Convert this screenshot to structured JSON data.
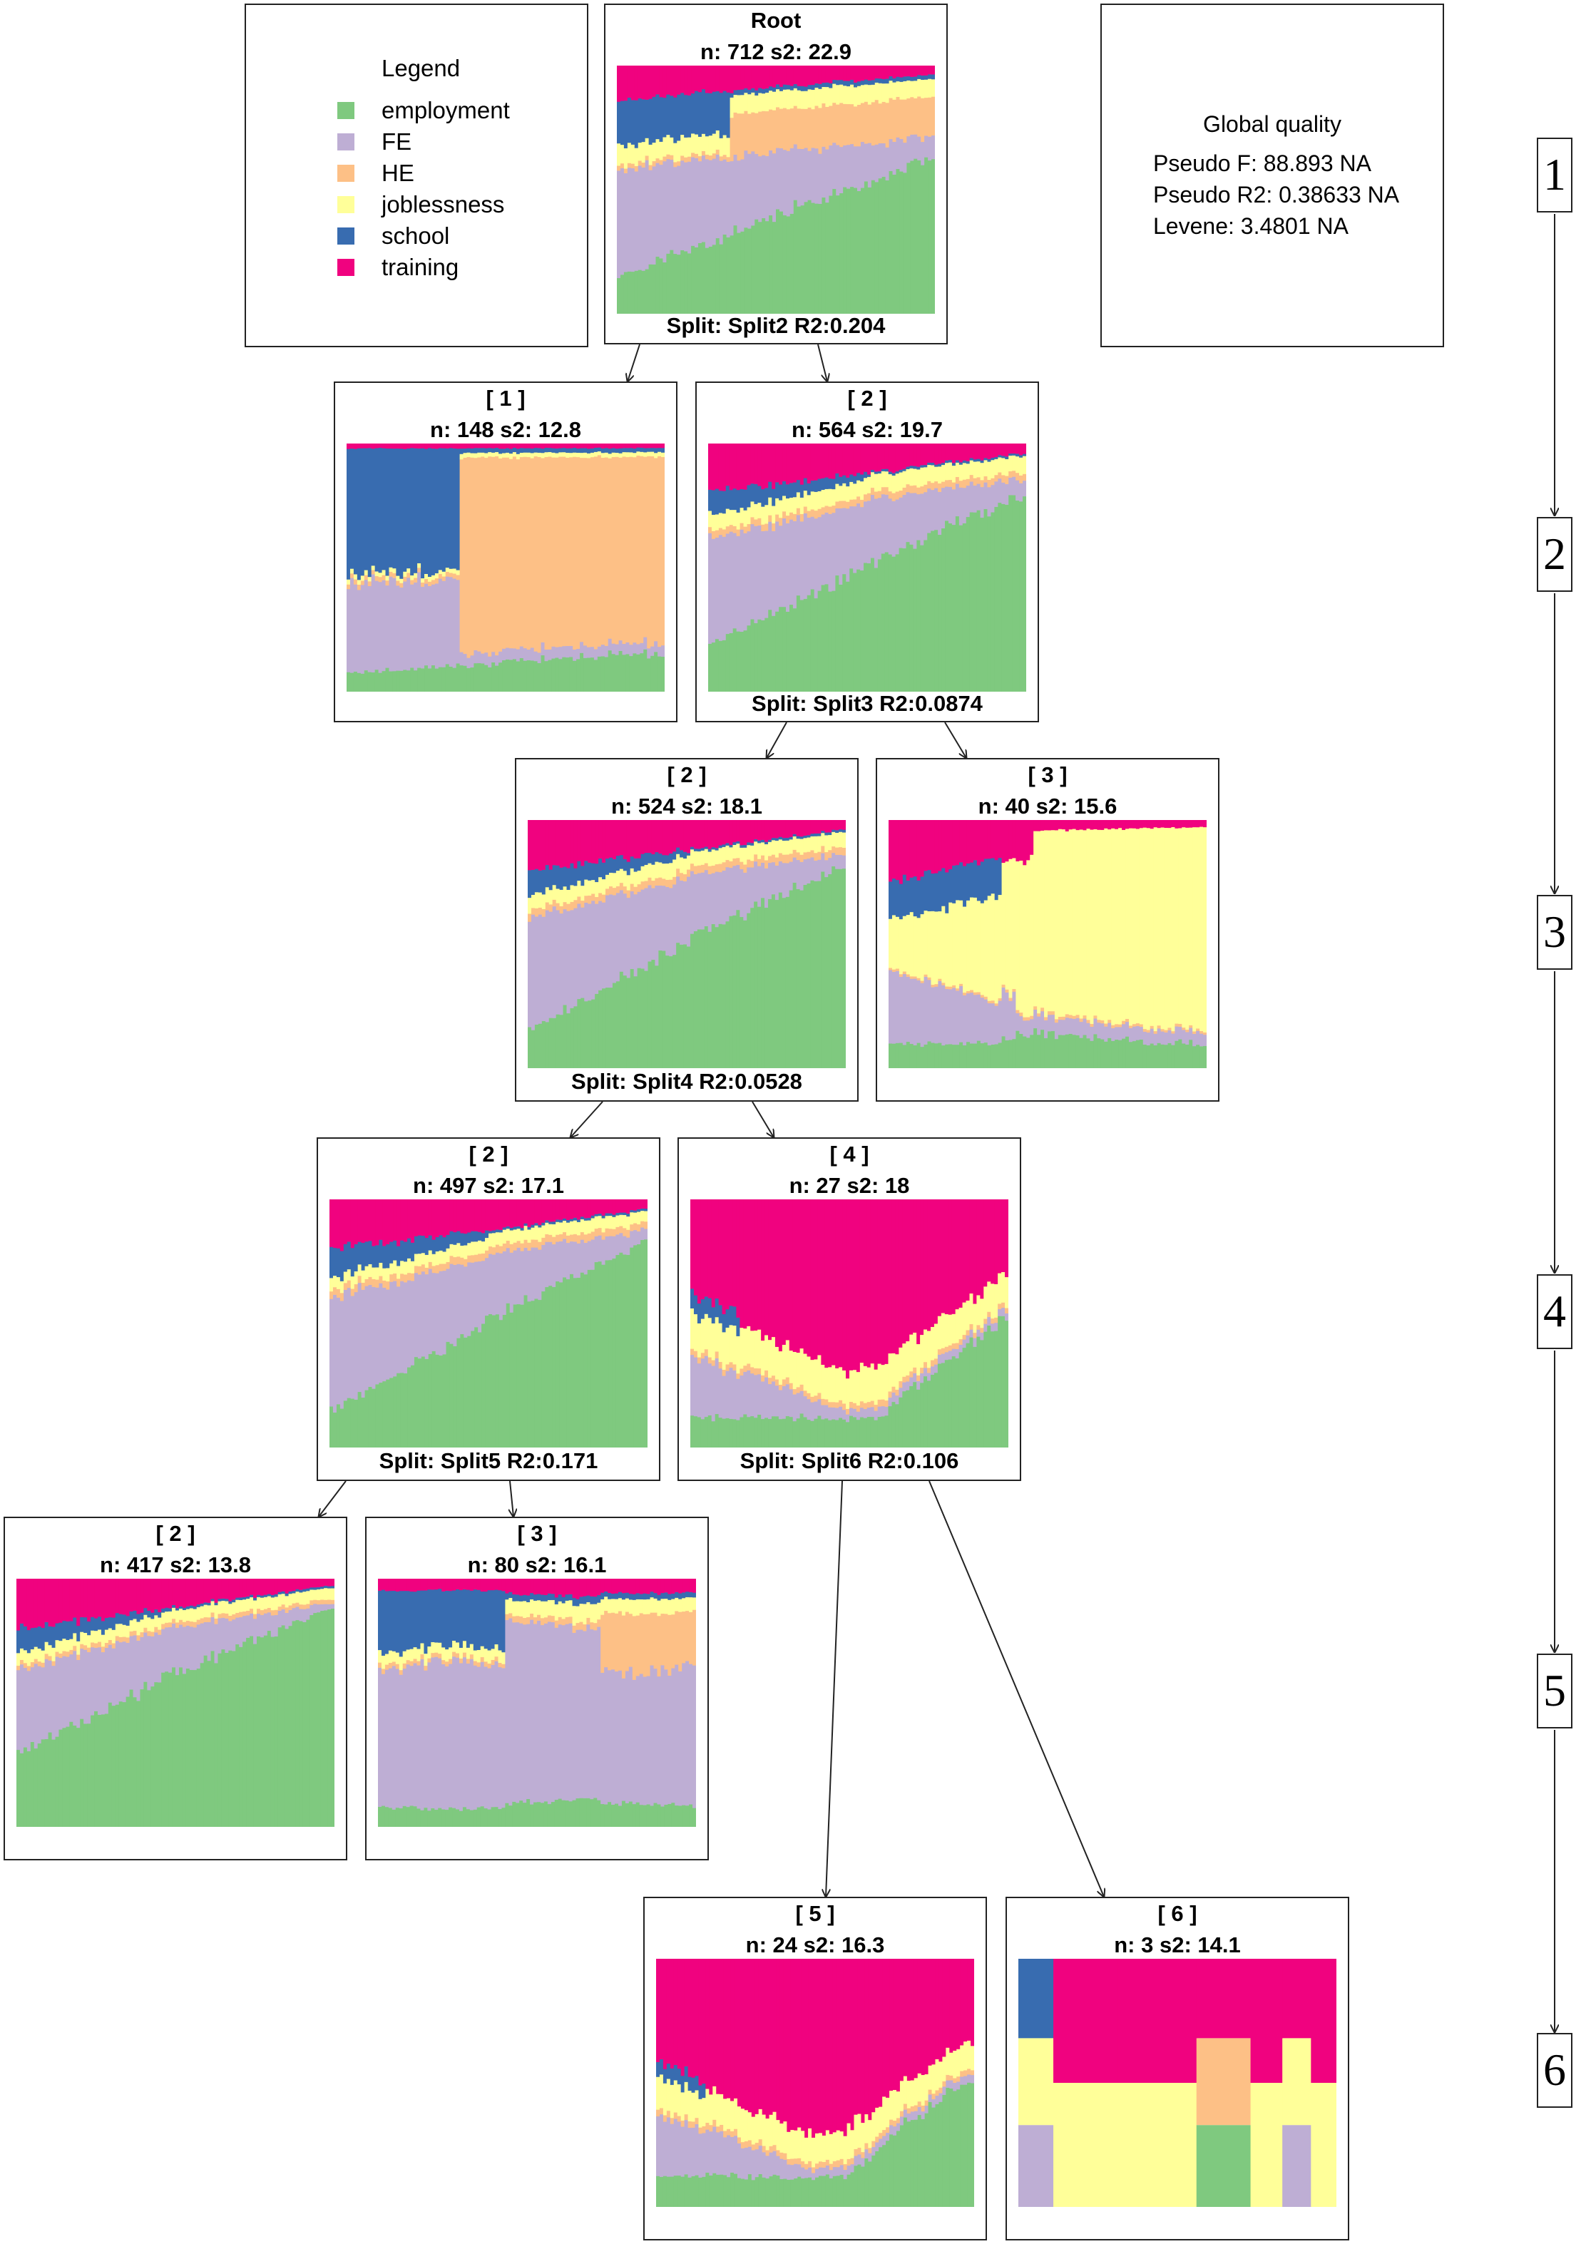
{
  "colors": {
    "employment": "#7fc97f",
    "FE": "#beaed4",
    "HE": "#fdc086",
    "joblessness": "#ffff99",
    "school": "#386cb0",
    "training": "#f0027f"
  },
  "legend": {
    "title": "Legend",
    "items": [
      {
        "label": "employment",
        "state": "employment"
      },
      {
        "label": "FE",
        "state": "FE"
      },
      {
        "label": "HE",
        "state": "HE"
      },
      {
        "label": "joblessness",
        "state": "joblessness"
      },
      {
        "label": "school",
        "state": "school"
      },
      {
        "label": "training",
        "state": "training"
      }
    ]
  },
  "global_quality": {
    "title": "Global quality",
    "pseudo_f": "Pseudo F: 88.893 NA",
    "pseudo_r2": "Pseudo R2: 0.38633 NA",
    "levene": "Levene: 3.4801 NA"
  },
  "levels": [
    "1",
    "2",
    "3",
    "4",
    "5",
    "6"
  ],
  "nodes": {
    "root": {
      "title": "Root",
      "stats": "n: 712 s2: 22.9",
      "split": "Split: Split2 R2:0.204"
    },
    "n1": {
      "title": "[ 1 ]",
      "stats": "n: 148 s2: 12.8",
      "split": ""
    },
    "n2a": {
      "title": "[ 2 ]",
      "stats": "n: 564 s2: 19.7",
      "split": "Split: Split3 R2:0.0874"
    },
    "n2b": {
      "title": "[ 2 ]",
      "stats": "n: 524 s2: 18.1",
      "split": "Split: Split4 R2:0.0528"
    },
    "n3a": {
      "title": "[ 3 ]",
      "stats": "n: 40 s2: 15.6",
      "split": ""
    },
    "n2c": {
      "title": "[ 2 ]",
      "stats": "n: 497 s2: 17.1",
      "split": "Split: Split5 R2:0.171"
    },
    "n4": {
      "title": "[ 4 ]",
      "stats": "n: 27 s2: 18",
      "split": "Split: Split6 R2:0.106"
    },
    "n2d": {
      "title": "[ 2 ]",
      "stats": "n: 417 s2: 13.8",
      "split": ""
    },
    "n3b": {
      "title": "[ 3 ]",
      "stats": "n: 80 s2: 16.1",
      "split": ""
    },
    "n5": {
      "title": "[ 5 ]",
      "stats": "n: 24 s2: 16.3",
      "split": ""
    },
    "n6": {
      "title": "[ 6 ]",
      "stats": "n: 3 s2: 14.1",
      "split": ""
    }
  }
}
